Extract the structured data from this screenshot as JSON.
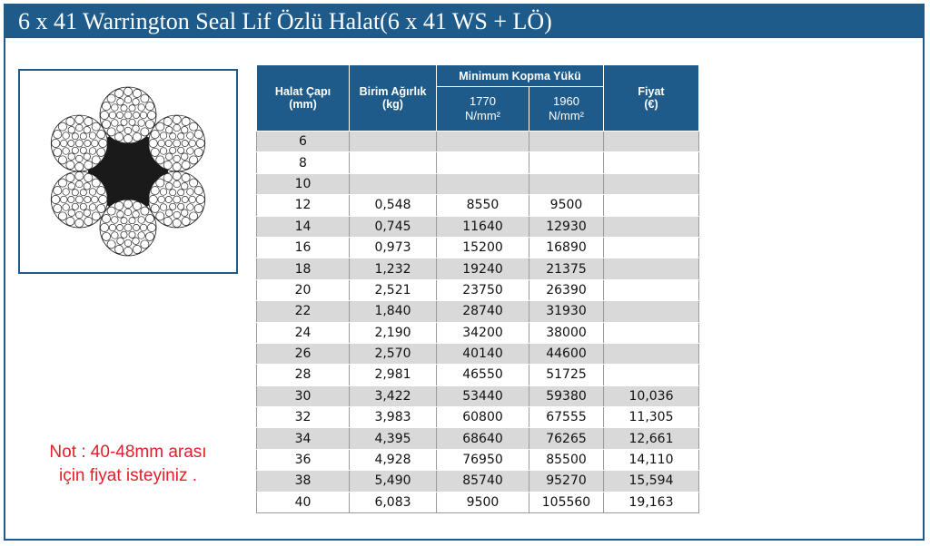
{
  "title": "6 x 41 Warrington Seal Lif Özlü Halat(6 x 41 WS + LÖ)",
  "note": {
    "line1": "Not : 40-48mm arası",
    "line2": "için fiyat isteyiniz ."
  },
  "table": {
    "headers": {
      "diameter": "Halat Çapı",
      "diameter_unit": "(mm)",
      "weight": "Birim Ağırlık",
      "weight_unit": "(kg)",
      "break_load": "Minimum Kopma Yükü",
      "grade1": "1770",
      "grade1_unit": "N/mm²",
      "grade2": "1960",
      "grade2_unit": "N/mm²",
      "price": "Fiyat",
      "price_unit": "(€)"
    },
    "rows": [
      [
        "6",
        "",
        "",
        "",
        ""
      ],
      [
        "8",
        "",
        "",
        "",
        ""
      ],
      [
        "10",
        "",
        "",
        "",
        ""
      ],
      [
        "12",
        "0,548",
        "8550",
        "9500",
        ""
      ],
      [
        "14",
        "0,745",
        "11640",
        "12930",
        ""
      ],
      [
        "16",
        "0,973",
        "15200",
        "16890",
        ""
      ],
      [
        "18",
        "1,232",
        "19240",
        "21375",
        ""
      ],
      [
        "20",
        "2,521",
        "23750",
        "26390",
        ""
      ],
      [
        "22",
        "1,840",
        "28740",
        "31930",
        ""
      ],
      [
        "24",
        "2,190",
        "34200",
        "38000",
        ""
      ],
      [
        "26",
        "2,570",
        "40140",
        "44600",
        ""
      ],
      [
        "28",
        "2,981",
        "46550",
        "51725",
        ""
      ],
      [
        "30",
        "3,422",
        "53440",
        "59380",
        "10,036"
      ],
      [
        "32",
        "3,983",
        "60800",
        "67555",
        "11,305"
      ],
      [
        "34",
        "4,395",
        "68640",
        "76265",
        "12,661"
      ],
      [
        "36",
        "4,928",
        "76950",
        "85500",
        "14,110"
      ],
      [
        "38",
        "5,490",
        "85740",
        "95270",
        "15,594"
      ],
      [
        "40",
        "6,083",
        "9500",
        "105560",
        "19,163"
      ]
    ]
  },
  "colors": {
    "header": "#1f5b8a",
    "row_shade": "#d9d9d9",
    "note": "#e0202a"
  }
}
